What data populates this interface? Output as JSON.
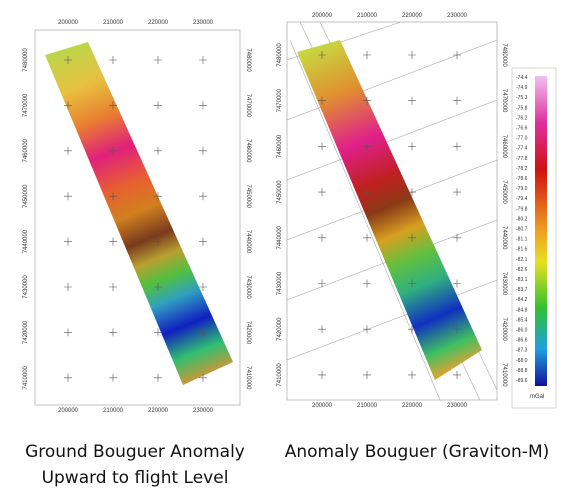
{
  "left_map": {
    "x_ticks": [
      "200000",
      "210000",
      "220000",
      "230000"
    ],
    "y_ticks": [
      "7480000",
      "7470000",
      "7460000",
      "7450000",
      "7440000",
      "7430000",
      "7420000",
      "7410000"
    ],
    "caption": [
      "Ground Bouguer Anomaly",
      "Upward to flight Level"
    ]
  },
  "right_map": {
    "x_ticks": [
      "200000",
      "210000",
      "220000",
      "230000"
    ],
    "y_ticks": [
      "7480000",
      "7470000",
      "7460000",
      "7450000",
      "7440000",
      "7430000",
      "7420000",
      "7410000"
    ],
    "caption": [
      "Anomaly Bouguer (Graviton-M)"
    ]
  },
  "colorbar": {
    "labels": [
      "-74.4",
      "-74.9",
      "-75.3",
      "-75.8",
      "-76.2",
      "-76.6",
      "-77.0",
      "-77.4",
      "-77.8",
      "-78.2",
      "-78.6",
      "-79.0",
      "-79.4",
      "-79.8",
      "-80.2",
      "-80.7",
      "-81.1",
      "-81.6",
      "-82.1",
      "-82.6",
      "-83.1",
      "-83.7",
      "-84.2",
      "-84.8",
      "-85.4",
      "-86.0",
      "-86.6",
      "-87.3",
      "-88.0",
      "-88.8",
      "-89.6"
    ],
    "unit": "mGal"
  }
}
